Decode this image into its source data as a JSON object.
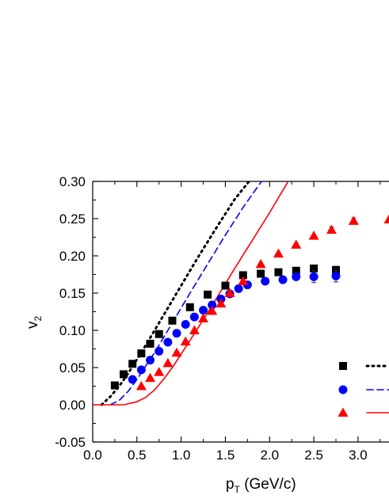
{
  "chart_data": {
    "type": "scatter",
    "xlabel": {
      "main": "p",
      "sub": "T",
      "rest": " (GeV/c)"
    },
    "ylabel": {
      "main": "v",
      "sub": "2"
    },
    "xlim": [
      0.0,
      3.35
    ],
    "ylim": [
      -0.05,
      0.3
    ],
    "xticks": [
      "0.0",
      "0.5",
      "1.0",
      "1.5",
      "2.0",
      "2.5",
      "3.0"
    ],
    "yticks": [
      "-0.05",
      "0.00",
      "0.05",
      "0.10",
      "0.15",
      "0.20",
      "0.25",
      "0.30"
    ],
    "series": [
      {
        "marker": "square",
        "color": "#000000",
        "points": [
          [
            0.25,
            0.026
          ],
          [
            0.35,
            0.041
          ],
          [
            0.45,
            0.055
          ],
          [
            0.55,
            0.069
          ],
          [
            0.65,
            0.082
          ],
          [
            0.75,
            0.095
          ],
          [
            0.9,
            0.113
          ],
          [
            1.1,
            0.131
          ],
          [
            1.3,
            0.148
          ],
          [
            1.5,
            0.16
          ],
          [
            1.7,
            0.174
          ],
          [
            1.9,
            0.176
          ],
          [
            2.1,
            0.178
          ],
          [
            2.3,
            0.18
          ],
          [
            2.5,
            0.183
          ],
          [
            2.75,
            0.181
          ]
        ],
        "errors": [
          0,
          0,
          0,
          0,
          0,
          0,
          0,
          0,
          0,
          0,
          0,
          0,
          0,
          0,
          0.004,
          0.005
        ]
      },
      {
        "marker": "circle",
        "color": "#0000ff",
        "points": [
          [
            0.45,
            0.034
          ],
          [
            0.55,
            0.047
          ],
          [
            0.65,
            0.06
          ],
          [
            0.75,
            0.072
          ],
          [
            0.85,
            0.084
          ],
          [
            0.95,
            0.096
          ],
          [
            1.05,
            0.108
          ],
          [
            1.15,
            0.118
          ],
          [
            1.25,
            0.127
          ],
          [
            1.35,
            0.134
          ],
          [
            1.45,
            0.142
          ],
          [
            1.55,
            0.149
          ],
          [
            1.65,
            0.156
          ],
          [
            1.75,
            0.161
          ],
          [
            1.95,
            0.166
          ],
          [
            2.15,
            0.168
          ],
          [
            2.3,
            0.172
          ],
          [
            2.5,
            0.172
          ],
          [
            2.75,
            0.173
          ]
        ],
        "errors": [
          0,
          0,
          0,
          0,
          0,
          0,
          0,
          0,
          0,
          0,
          0,
          0,
          0,
          0,
          0,
          0,
          0.004,
          0.008,
          0.008
        ]
      },
      {
        "marker": "triangle",
        "color": "#ff0000",
        "points": [
          [
            0.55,
            0.025
          ],
          [
            0.65,
            0.036
          ],
          [
            0.75,
            0.044
          ],
          [
            0.85,
            0.056
          ],
          [
            0.95,
            0.07
          ],
          [
            1.05,
            0.085
          ],
          [
            1.15,
            0.1
          ],
          [
            1.25,
            0.116
          ],
          [
            1.35,
            0.126
          ],
          [
            1.45,
            0.136
          ],
          [
            1.55,
            0.15
          ],
          [
            1.7,
            0.166
          ],
          [
            1.9,
            0.189
          ],
          [
            2.1,
            0.203
          ],
          [
            2.3,
            0.215
          ],
          [
            2.5,
            0.227
          ],
          [
            2.7,
            0.235
          ],
          [
            2.95,
            0.247
          ],
          [
            3.35,
            0.249
          ]
        ],
        "errors": [
          0,
          0,
          0,
          0,
          0,
          0,
          0,
          0,
          0,
          0,
          0,
          0,
          0,
          0,
          0,
          0,
          0.004,
          0.004,
          0
        ]
      }
    ],
    "curves": [
      {
        "style": "dotted",
        "color": "#000000",
        "points": [
          [
            0.1,
            0.0
          ],
          [
            0.2,
            0.011
          ],
          [
            0.3,
            0.025
          ],
          [
            0.4,
            0.042
          ],
          [
            0.6,
            0.08
          ],
          [
            0.8,
            0.12
          ],
          [
            1.0,
            0.16
          ],
          [
            1.2,
            0.2
          ],
          [
            1.4,
            0.238
          ],
          [
            1.6,
            0.275
          ],
          [
            1.8,
            0.305
          ]
        ]
      },
      {
        "style": "dashed",
        "color": "#0000ff",
        "points": [
          [
            0.2,
            0.0
          ],
          [
            0.3,
            0.006
          ],
          [
            0.4,
            0.018
          ],
          [
            0.5,
            0.034
          ],
          [
            0.7,
            0.07
          ],
          [
            0.9,
            0.11
          ],
          [
            1.1,
            0.15
          ],
          [
            1.3,
            0.189
          ],
          [
            1.5,
            0.228
          ],
          [
            1.7,
            0.265
          ],
          [
            1.92,
            0.302
          ]
        ]
      },
      {
        "style": "solid",
        "color": "#ff0000",
        "points": [
          [
            0.0,
            0.0
          ],
          [
            0.35,
            0.0
          ],
          [
            0.5,
            0.004
          ],
          [
            0.6,
            0.01
          ],
          [
            0.7,
            0.02
          ],
          [
            0.8,
            0.034
          ],
          [
            0.9,
            0.05
          ],
          [
            1.0,
            0.068
          ],
          [
            1.2,
            0.105
          ],
          [
            1.4,
            0.143
          ],
          [
            1.6,
            0.182
          ],
          [
            1.8,
            0.22
          ],
          [
            2.0,
            0.258
          ],
          [
            2.22,
            0.302
          ]
        ]
      }
    ],
    "legend": {
      "placement": "bottom-right",
      "entries": [
        {
          "marker": "square",
          "color": "#000000",
          "line": "dotted"
        },
        {
          "marker": "circle",
          "color": "#0000ff",
          "line": "dashed"
        },
        {
          "marker": "triangle",
          "color": "#ff0000",
          "line": "solid"
        }
      ]
    }
  }
}
